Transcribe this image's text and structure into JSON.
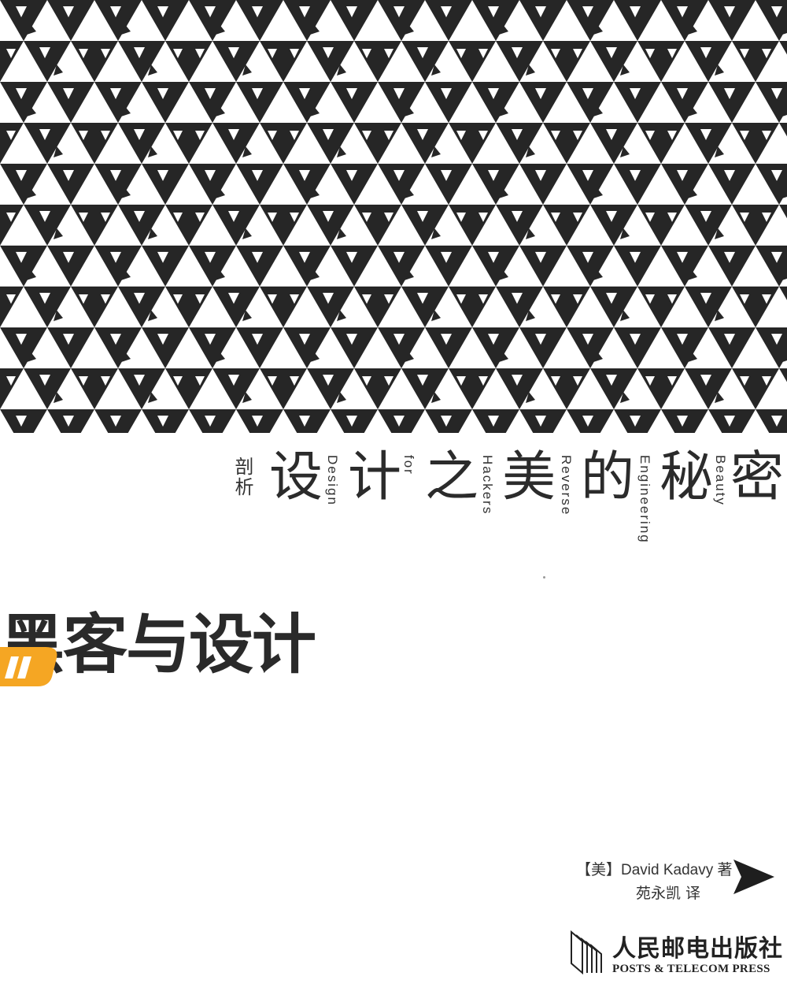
{
  "cover": {
    "subtitle_small": "剖析",
    "subtitle_chars": [
      "设",
      "计",
      "之",
      "美",
      "的",
      "秘",
      "密"
    ],
    "english_words": [
      "Design",
      "for",
      "Hackers",
      "Reverse",
      "Engineering",
      "Beauty"
    ],
    "title": "黑客与设计",
    "author": "【美】David Kadavy 著",
    "translator": "苑永凯 译",
    "publisher_cn": "人民邮电出版社",
    "publisher_en": "POSTS & TELECOM PRESS"
  },
  "colors": {
    "pattern_dark": "#262626",
    "accent_orange": "#f5a623",
    "text": "#2a2a2a"
  },
  "icons": {
    "pattern": "tessellated-bird-pattern",
    "arrow": "play-arrow-icon",
    "logo": "publisher-logo-icon"
  }
}
